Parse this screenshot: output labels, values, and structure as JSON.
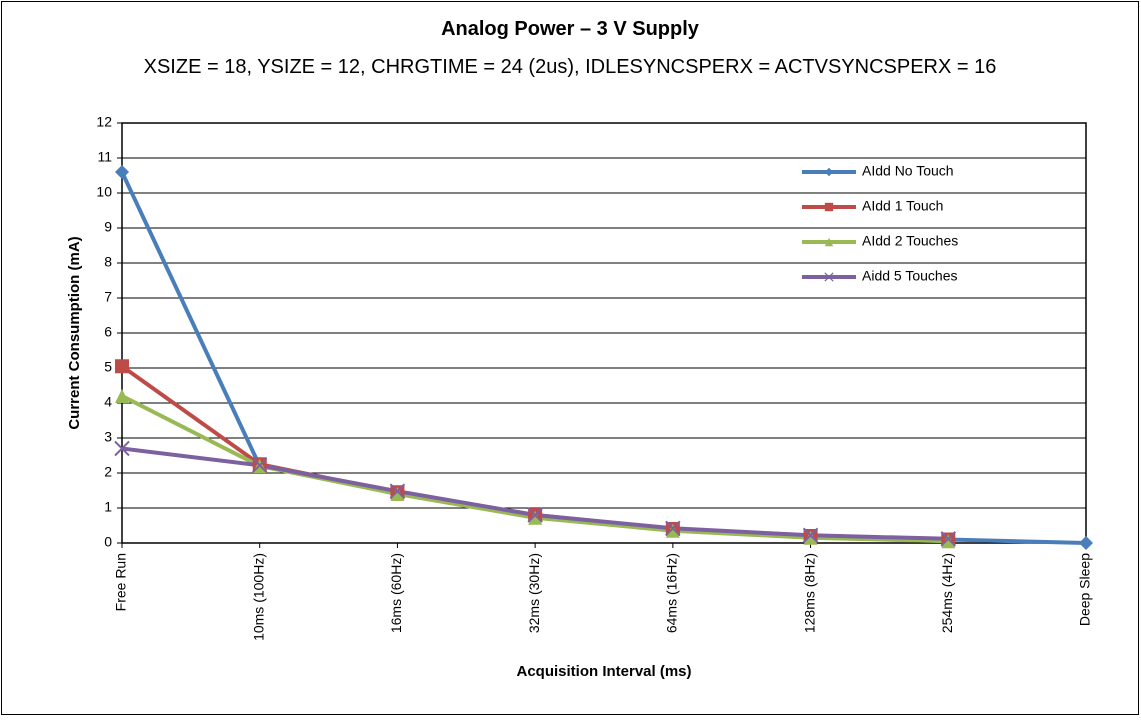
{
  "chart_data": {
    "type": "line",
    "title": "Analog Power – 3 V Supply",
    "subtitle": "XSIZE = 18, YSIZE = 12, CHRGTIME = 24 (2us), IDLESYNCSPERX = ACTVSYNCSPERX = 16",
    "x_label": "Acquisition Interval (ms)",
    "y_label": "Current Consumption (mA)",
    "categories": [
      "Free Run",
      "10ms (100Hz)",
      "16ms (60Hz)",
      "32ms (30Hz)",
      "64ms (16Hz)",
      "128ms (8Hz)",
      "254ms (4Hz)",
      "Deep Sleep"
    ],
    "series": [
      {
        "name": "AIdd No Touch",
        "color": "#4a7ebb",
        "marker": "diamond",
        "values": [
          10.6,
          2.2,
          1.45,
          0.78,
          0.4,
          0.2,
          0.1,
          0
        ]
      },
      {
        "name": "AIdd 1 Touch",
        "color": "#be4b48",
        "marker": "square",
        "values": [
          5.05,
          2.25,
          1.45,
          0.8,
          0.4,
          0.2,
          0.1,
          null
        ]
      },
      {
        "name": "AIdd 2 Touches",
        "color": "#98b954",
        "marker": "triangle",
        "values": [
          4.2,
          2.2,
          1.4,
          0.72,
          0.35,
          0.15,
          0.05,
          null
        ]
      },
      {
        "name": "Aidd 5 Touches",
        "color": "#7d60a0",
        "marker": "x",
        "values": [
          2.7,
          2.22,
          1.48,
          0.8,
          0.42,
          0.22,
          0.12,
          null
        ]
      }
    ],
    "ylim": [
      0,
      12
    ],
    "yticks": [
      0,
      1,
      2,
      3,
      4,
      5,
      6,
      7,
      8,
      9,
      10,
      11,
      12
    ],
    "grid": true,
    "legend": "upper right"
  }
}
